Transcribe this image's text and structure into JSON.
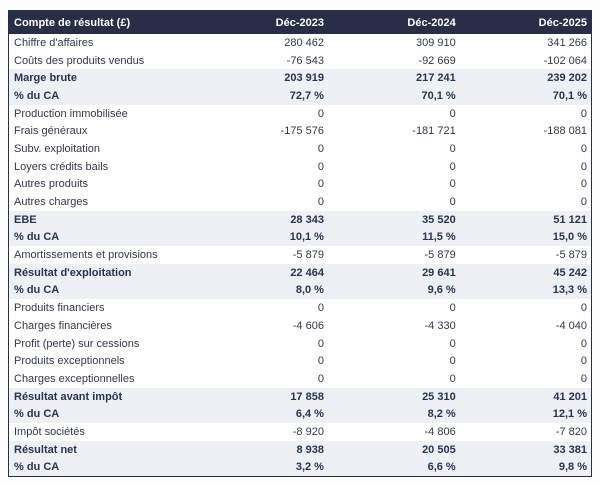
{
  "table": {
    "title_label": "Compte de résultat (£)",
    "columns": [
      "Déc-2023",
      "Déc-2024",
      "Déc-2025"
    ],
    "rows": [
      {
        "label": "Chiffre d'affaires",
        "values": [
          "280 462",
          "309 910",
          "341 266"
        ],
        "emphasis": false
      },
      {
        "label": "Coûts des produits vendus",
        "values": [
          "-76 543",
          "-92 669",
          "-102 064"
        ],
        "emphasis": false
      },
      {
        "label": "Marge brute",
        "values": [
          "203 919",
          "217 241",
          "239 202"
        ],
        "emphasis": true
      },
      {
        "label": "% du CA",
        "values": [
          "72,7 %",
          "70,1 %",
          "70,1 %"
        ],
        "emphasis": true
      },
      {
        "label": "Production immobilisée",
        "values": [
          "0",
          "0",
          "0"
        ],
        "emphasis": false
      },
      {
        "label": "Frais généraux",
        "values": [
          "-175 576",
          "-181 721",
          "-188 081"
        ],
        "emphasis": false
      },
      {
        "label": "Subv. exploitation",
        "values": [
          "0",
          "0",
          "0"
        ],
        "emphasis": false
      },
      {
        "label": "Loyers crédits bails",
        "values": [
          "0",
          "0",
          "0"
        ],
        "emphasis": false
      },
      {
        "label": "Autres produits",
        "values": [
          "0",
          "0",
          "0"
        ],
        "emphasis": false
      },
      {
        "label": "Autres charges",
        "values": [
          "0",
          "0",
          "0"
        ],
        "emphasis": false
      },
      {
        "label": "EBE",
        "values": [
          "28 343",
          "35 520",
          "51 121"
        ],
        "emphasis": true
      },
      {
        "label": "% du CA",
        "values": [
          "10,1 %",
          "11,5 %",
          "15,0 %"
        ],
        "emphasis": true
      },
      {
        "label": "Amortissements et provisions",
        "values": [
          "-5 879",
          "-5 879",
          "-5 879"
        ],
        "emphasis": false
      },
      {
        "label": "Résultat d'exploitation",
        "values": [
          "22 464",
          "29 641",
          "45 242"
        ],
        "emphasis": true
      },
      {
        "label": "% du CA",
        "values": [
          "8,0 %",
          "9,6 %",
          "13,3 %"
        ],
        "emphasis": true
      },
      {
        "label": "Produits financiers",
        "values": [
          "0",
          "0",
          "0"
        ],
        "emphasis": false
      },
      {
        "label": "Charges financières",
        "values": [
          "-4 606",
          "-4 330",
          "-4 040"
        ],
        "emphasis": false
      },
      {
        "label": "Profit (perte) sur cessions",
        "values": [
          "0",
          "0",
          "0"
        ],
        "emphasis": false
      },
      {
        "label": "Produits exceptionnels",
        "values": [
          "0",
          "0",
          "0"
        ],
        "emphasis": false
      },
      {
        "label": "Charges exceptionnelles",
        "values": [
          "0",
          "0",
          "0"
        ],
        "emphasis": false
      },
      {
        "label": "Résultat avant impôt",
        "values": [
          "17 858",
          "25 310",
          "41 201"
        ],
        "emphasis": true
      },
      {
        "label": "% du CA",
        "values": [
          "6,4 %",
          "8,2 %",
          "12,1 %"
        ],
        "emphasis": true
      },
      {
        "label": "Impôt sociétés",
        "values": [
          "-8 920",
          "-4 806",
          "-7 820"
        ],
        "emphasis": false
      },
      {
        "label": "Résultat net",
        "values": [
          "8 938",
          "20 505",
          "33 381"
        ],
        "emphasis": true
      },
      {
        "label": "% du CA",
        "values": [
          "3,2 %",
          "6,6 %",
          "9,8 %"
        ],
        "emphasis": true
      }
    ]
  },
  "colors": {
    "header_bg": "#272e45",
    "header_text": "#ffffff",
    "summary_row_bg": "#edf0f5",
    "body_text": "#323949",
    "outer_border": "#272e45"
  },
  "chart_data": {
    "type": "table",
    "title": "Compte de résultat (£)",
    "categories": [
      "Déc-2023",
      "Déc-2024",
      "Déc-2025"
    ],
    "series": [
      {
        "name": "Chiffre d'affaires",
        "values": [
          280462,
          309910,
          341266
        ]
      },
      {
        "name": "Coûts des produits vendus",
        "values": [
          -76543,
          -92669,
          -102064
        ]
      },
      {
        "name": "Marge brute",
        "values": [
          203919,
          217241,
          239202
        ]
      },
      {
        "name": "Marge brute % du CA",
        "values": [
          72.7,
          70.1,
          70.1
        ]
      },
      {
        "name": "Production immobilisée",
        "values": [
          0,
          0,
          0
        ]
      },
      {
        "name": "Frais généraux",
        "values": [
          -175576,
          -181721,
          -188081
        ]
      },
      {
        "name": "Subv. exploitation",
        "values": [
          0,
          0,
          0
        ]
      },
      {
        "name": "Loyers crédits bails",
        "values": [
          0,
          0,
          0
        ]
      },
      {
        "name": "Autres produits",
        "values": [
          0,
          0,
          0
        ]
      },
      {
        "name": "Autres charges",
        "values": [
          0,
          0,
          0
        ]
      },
      {
        "name": "EBE",
        "values": [
          28343,
          35520,
          51121
        ]
      },
      {
        "name": "EBE % du CA",
        "values": [
          10.1,
          11.5,
          15.0
        ]
      },
      {
        "name": "Amortissements et provisions",
        "values": [
          -5879,
          -5879,
          -5879
        ]
      },
      {
        "name": "Résultat d'exploitation",
        "values": [
          22464,
          29641,
          45242
        ]
      },
      {
        "name": "Résultat d'exploitation % du CA",
        "values": [
          8.0,
          9.6,
          13.3
        ]
      },
      {
        "name": "Produits financiers",
        "values": [
          0,
          0,
          0
        ]
      },
      {
        "name": "Charges financières",
        "values": [
          -4606,
          -4330,
          -4040
        ]
      },
      {
        "name": "Profit (perte) sur cessions",
        "values": [
          0,
          0,
          0
        ]
      },
      {
        "name": "Produits exceptionnels",
        "values": [
          0,
          0,
          0
        ]
      },
      {
        "name": "Charges exceptionnelles",
        "values": [
          0,
          0,
          0
        ]
      },
      {
        "name": "Résultat avant impôt",
        "values": [
          17858,
          25310,
          41201
        ]
      },
      {
        "name": "Résultat avant impôt % du CA",
        "values": [
          6.4,
          8.2,
          12.1
        ]
      },
      {
        "name": "Impôt sociétés",
        "values": [
          -8920,
          -4806,
          -7820
        ]
      },
      {
        "name": "Résultat net",
        "values": [
          8938,
          20505,
          33381
        ]
      },
      {
        "name": "Résultat net % du CA",
        "values": [
          3.2,
          6.6,
          9.8
        ]
      }
    ]
  }
}
